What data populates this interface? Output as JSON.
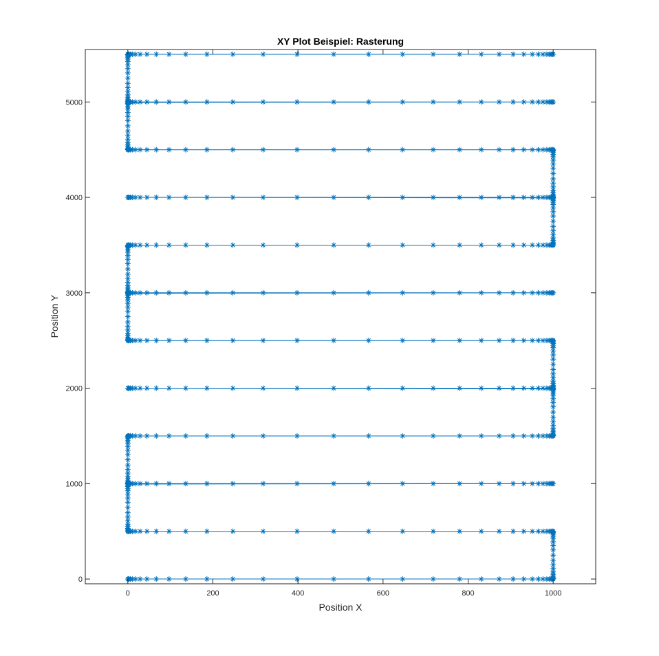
{
  "chart_data": {
    "type": "line",
    "title": "XY Plot Beispiel: Rasterung",
    "xlabel": "Position X",
    "ylabel": "Position Y",
    "xlim": [
      -100,
      1100
    ],
    "ylim": [
      -50,
      5550
    ],
    "xticks": [
      0,
      200,
      400,
      600,
      800,
      1000
    ],
    "yticks": [
      0,
      1000,
      2000,
      3000,
      4000,
      5000
    ],
    "grid": false,
    "legend": "none",
    "series_color": "#0072BD",
    "marker": "asterisk",
    "scan_rows_y": [
      0,
      500,
      1000,
      1500,
      2000,
      2500,
      3000,
      3500,
      4000,
      4500,
      5000,
      5500
    ],
    "scan_x_start": 0,
    "scan_x_end": 1000,
    "line_samples_x": [
      0,
      1,
      3,
      6,
      11,
      18,
      29,
      45,
      67,
      97,
      136,
      186,
      247,
      318,
      398,
      484,
      566,
      646,
      718,
      780,
      831,
      873,
      906,
      931,
      951,
      965,
      976,
      985,
      991,
      995,
      998,
      1000
    ],
    "transition_samples_fraction": [
      0,
      0.01,
      0.03,
      0.06,
      0.1,
      0.15,
      0.22,
      0.3,
      0.39,
      0.5,
      0.61,
      0.7,
      0.78,
      0.85,
      0.9,
      0.94,
      0.97,
      0.99,
      1
    ]
  }
}
